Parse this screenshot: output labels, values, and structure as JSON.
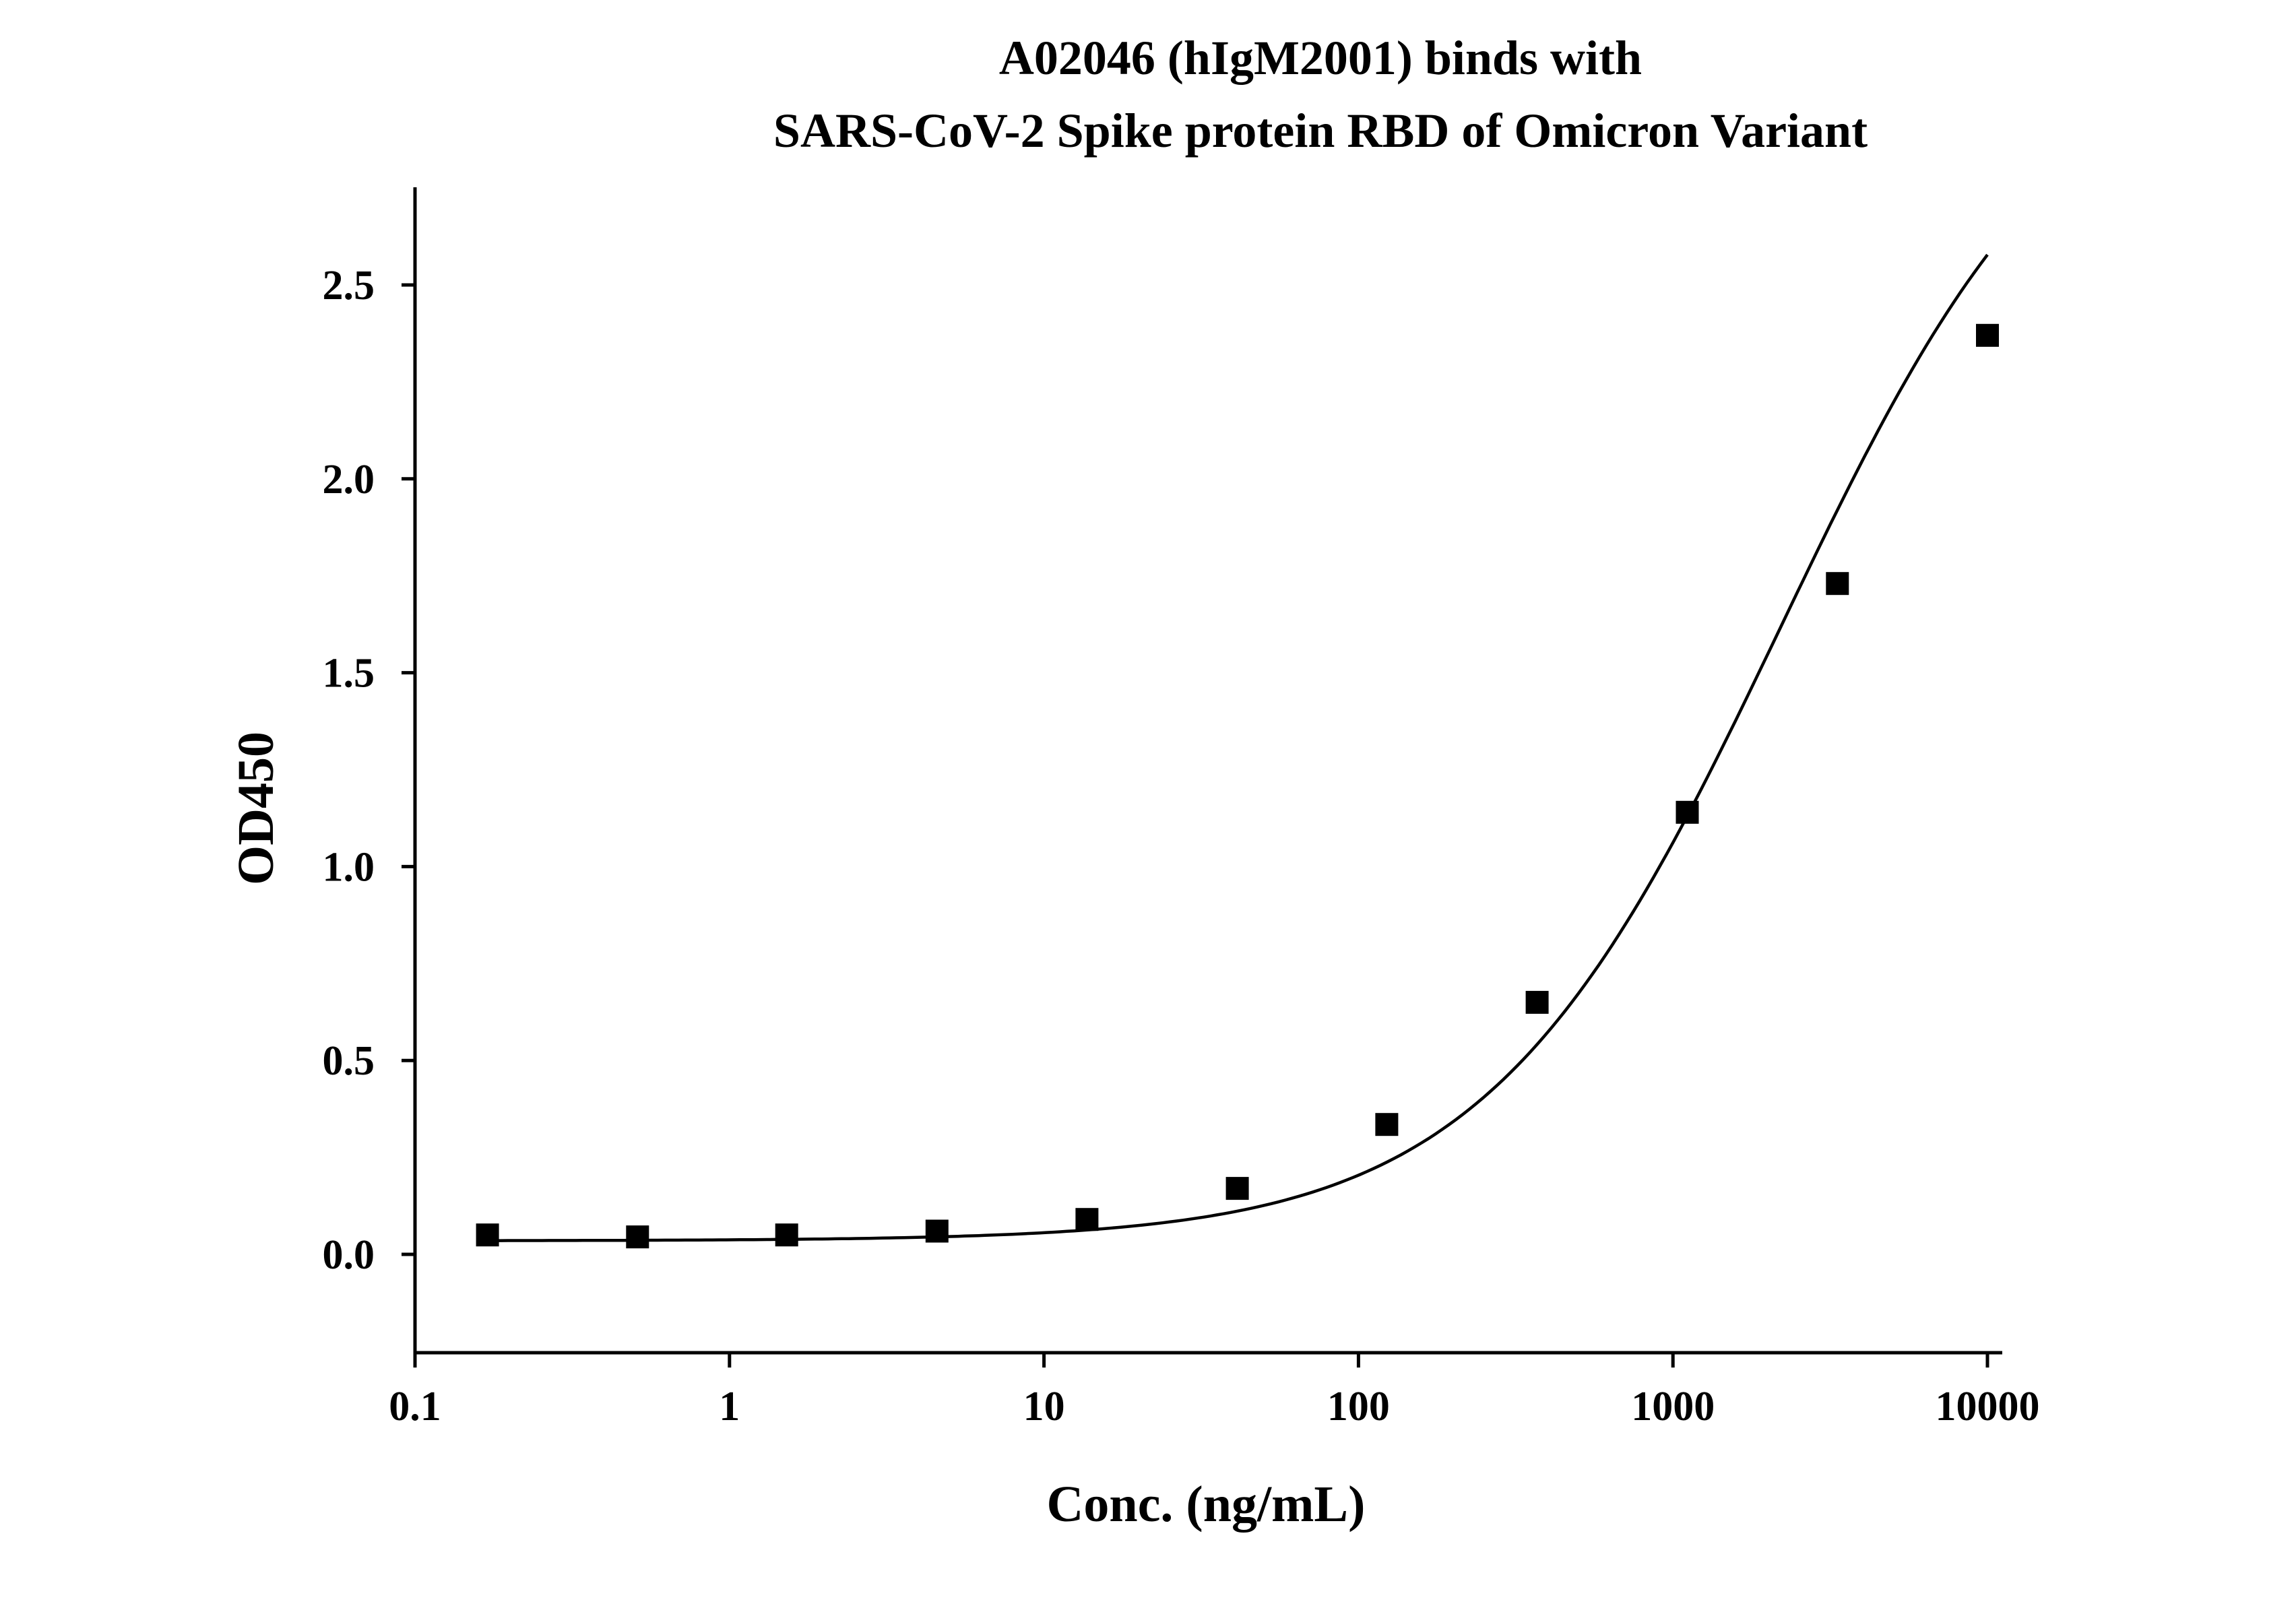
{
  "chart_data": {
    "type": "scatter",
    "title_lines": [
      "A02046 (hIgM2001) binds with",
      "SARS-CoV-2 Spike protein RBD of Omicron Variant"
    ],
    "xlabel": "Conc. (ng/mL)",
    "ylabel": "OD450",
    "x_scale": "log",
    "xlim": [
      0.1,
      10000
    ],
    "ylim": [
      -0.25,
      2.75
    ],
    "x_ticks": [
      0.1,
      1,
      10,
      100,
      1000,
      10000
    ],
    "x_tick_labels": [
      "0.1",
      "1",
      "10",
      "100",
      "1000",
      "10000"
    ],
    "y_ticks": [
      0.0,
      0.5,
      1.0,
      1.5,
      2.0,
      2.5
    ],
    "y_tick_labels": [
      "0.0",
      "0.5",
      "1.0",
      "1.5",
      "2.0",
      "2.5"
    ],
    "grid": false,
    "legend": "none",
    "marker": "filled-square",
    "color": "#000000",
    "series": [
      {
        "x": [
          0.17,
          0.51,
          1.52,
          4.57,
          13.7,
          41.2,
          123,
          370,
          1111,
          3333,
          10000
        ],
        "y": [
          0.05,
          0.045,
          0.05,
          0.06,
          0.09,
          0.17,
          0.335,
          0.65,
          1.14,
          1.73,
          2.37
        ]
      }
    ],
    "fit_curve": {
      "model": "4PL",
      "bottom": 0.035,
      "top": 3.2,
      "ec50": 2200,
      "hill": 0.93
    }
  }
}
